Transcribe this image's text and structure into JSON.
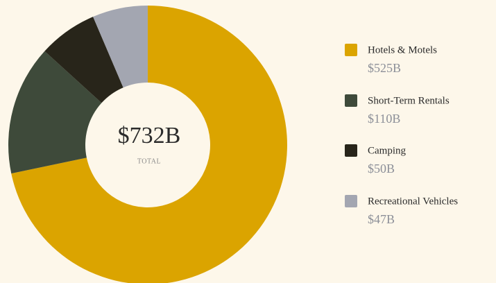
{
  "chart_data": {
    "type": "donut",
    "categories": [
      "Hotels & Motels",
      "Short-Term Rentals",
      "Camping",
      "Recreational Vehicles"
    ],
    "values": [
      525,
      110,
      50,
      47
    ],
    "value_labels": [
      "$525B",
      "$110B",
      "$50B",
      "$47B"
    ],
    "colors": [
      "#dba400",
      "#3e4a3a",
      "#28251a",
      "#a3a6b1"
    ],
    "center_label": "$732B",
    "center_sublabel": "TOTAL",
    "legend": "right"
  }
}
